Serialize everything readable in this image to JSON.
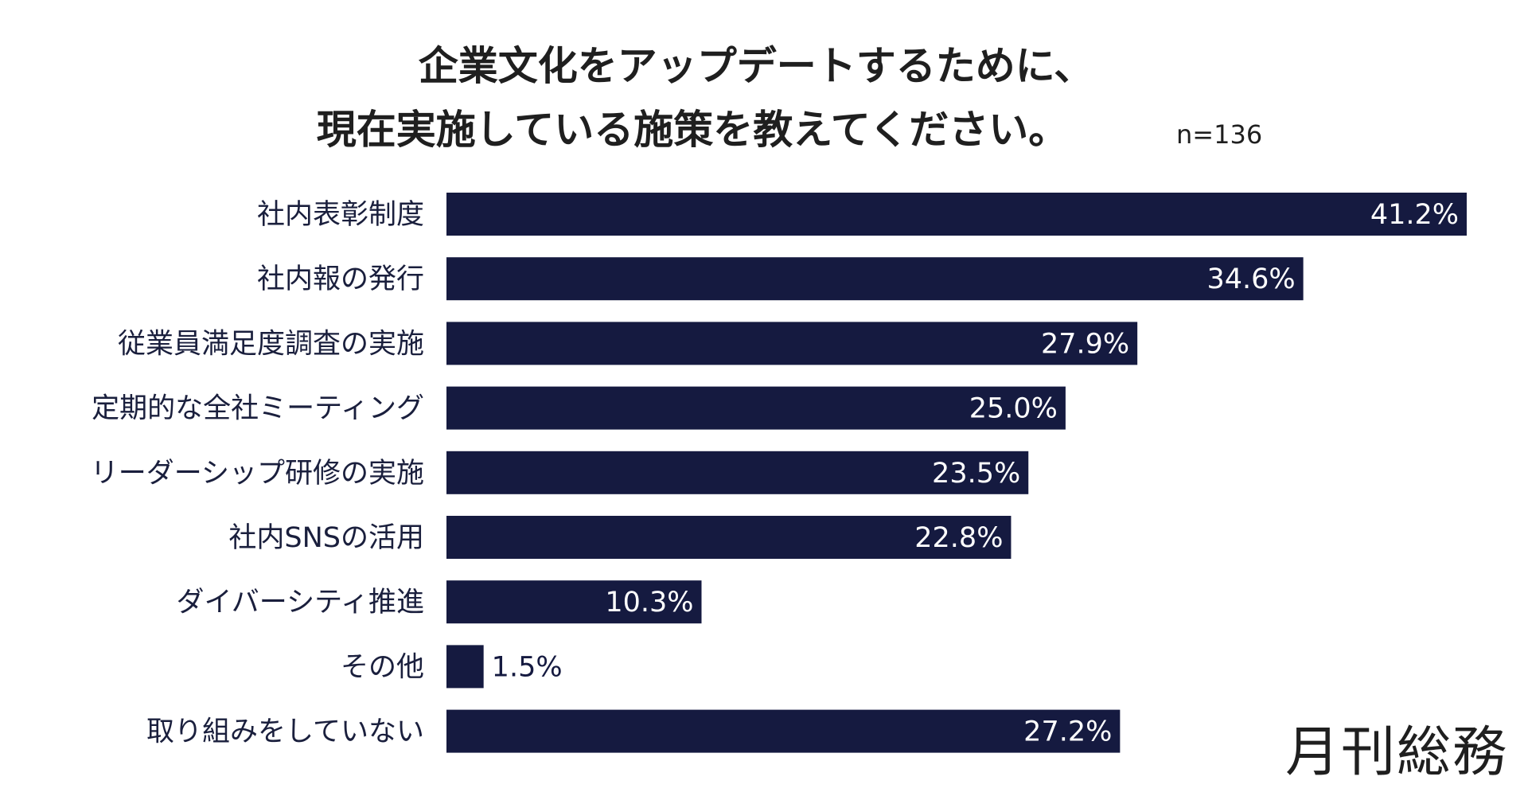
{
  "chart_data": {
    "type": "bar",
    "orientation": "horizontal",
    "title_lines": [
      "企業文化をアップデートするために、",
      "現在実施している施策を教えてください。"
    ],
    "sample_size": "n=136",
    "categories": [
      "社内表彰制度",
      "社内報の発行",
      "従業員満足度調査の実施",
      "定期的な全社ミーティング",
      "リーダーシップ研修の実施",
      "社内SNSの活用",
      "ダイバーシティ推進",
      "その他",
      "取り組みをしていない"
    ],
    "values": [
      41.2,
      34.6,
      27.9,
      25.0,
      23.5,
      22.8,
      10.3,
      1.5,
      27.2
    ],
    "value_labels": [
      "41.2%",
      "34.6%",
      "27.9%",
      "25.0%",
      "23.5%",
      "22.8%",
      "10.3%",
      "1.5%",
      "27.2%"
    ],
    "unit": "%",
    "xlim": [
      0,
      41.2
    ],
    "grid": false,
    "legend": "none",
    "bar_color": "#151a40",
    "label_color_inside": "#ffffff",
    "label_color_outside": "#151a40",
    "text_color": "#1f1f1f"
  },
  "branding": {
    "logo_text": "月刊総務"
  }
}
